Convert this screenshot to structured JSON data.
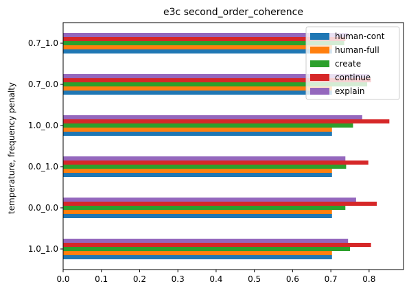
{
  "chart_data": {
    "type": "bar",
    "orientation": "horizontal",
    "title": "e3c second_order_coherence",
    "xlabel": "",
    "ylabel": "temperature, frequency penalty",
    "categories": [
      "1.0_1.0",
      "0.0_0.0",
      "0.0_1.0",
      "1.0_0.0",
      "0.7_0.0",
      "0.7_1.0"
    ],
    "series": [
      {
        "name": "human-cont",
        "color": "#1f77b4",
        "values": [
          0.703,
          0.703,
          0.703,
          0.703,
          0.703,
          0.703
        ]
      },
      {
        "name": "human-full",
        "color": "#ff7f0e",
        "values": [
          0.703,
          0.703,
          0.703,
          0.703,
          0.703,
          0.703
        ]
      },
      {
        "name": "create",
        "color": "#2ca02c",
        "values": [
          0.75,
          0.738,
          0.74,
          0.758,
          0.795,
          0.735
        ]
      },
      {
        "name": "continue",
        "color": "#d62728",
        "values": [
          0.805,
          0.82,
          0.798,
          0.853,
          0.805,
          0.738
        ]
      },
      {
        "name": "explain",
        "color": "#9467bd",
        "values": [
          0.745,
          0.766,
          0.738,
          0.782,
          0.8,
          0.745
        ]
      }
    ],
    "xlim": [
      0,
      0.89
    ],
    "xticks": [
      0.0,
      0.1,
      0.2,
      0.3,
      0.4,
      0.5,
      0.6,
      0.7,
      0.8
    ],
    "xtick_labels": [
      "0.0",
      "0.1",
      "0.2",
      "0.3",
      "0.4",
      "0.5",
      "0.6",
      "0.7",
      "0.8"
    ],
    "grid": false,
    "legend_position": "top-right"
  }
}
